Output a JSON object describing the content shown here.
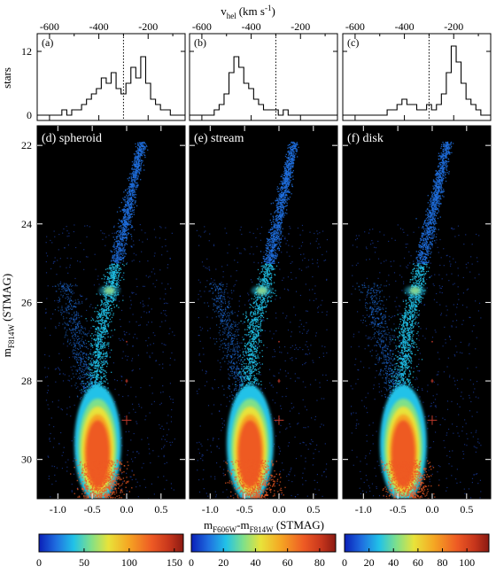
{
  "top_axis": {
    "label_main": "v",
    "label_sub": "hel",
    "label_unit_pre": "(km s",
    "label_unit_sup": "-1",
    "label_unit_post": ")",
    "ticks": [
      "-600",
      "-400",
      "-200"
    ],
    "tick_values": [
      -600,
      -400,
      -200
    ]
  },
  "hist_ylabel": "stars",
  "hist_yticks": [
    "0",
    "12"
  ],
  "cmd_ylabel_main": "m",
  "cmd_ylabel_sub": "F814W",
  "cmd_ylabel_post": " (STMAG)",
  "cmd_yticks": [
    "22",
    "24",
    "26",
    "28",
    "30"
  ],
  "cmd_xlabel_a": "m",
  "cmd_xlabel_sub1": "F606W",
  "cmd_xlabel_b": "-m",
  "cmd_xlabel_sub2": "F814W",
  "cmd_xlabel_post": " (STMAG)",
  "cmd_xticks": [
    "-1.0",
    "-0.5",
    "0.0",
    "0.5"
  ],
  "colors": {
    "dotted_line": "#000000",
    "error_cross": "#c0392b",
    "cmd_background": "#000000"
  },
  "chart_data": [
    {
      "type": "histogram",
      "panel": "(a)",
      "x_unit": "km s-1",
      "xlim": [
        -650,
        -50
      ],
      "ylim": [
        0,
        14
      ],
      "divider_x": -300,
      "bins_x": [
        -640,
        -620,
        -600,
        -580,
        -560,
        -540,
        -520,
        -500,
        -480,
        -460,
        -440,
        -420,
        -400,
        -380,
        -360,
        -340,
        -320,
        -300,
        -280,
        -260,
        -240,
        -220,
        -200,
        -180,
        -160,
        -140,
        -120,
        -100,
        -80,
        -60
      ],
      "counts": [
        0,
        0,
        0,
        0,
        0,
        1,
        0,
        1,
        1,
        2,
        3,
        4,
        5,
        7,
        6,
        8,
        5,
        4,
        6,
        9,
        7,
        11,
        6,
        3,
        2,
        1,
        1,
        0,
        0,
        0
      ]
    },
    {
      "type": "histogram",
      "panel": "(b)",
      "x_unit": "km s-1",
      "xlim": [
        -650,
        -50
      ],
      "ylim": [
        0,
        14
      ],
      "divider_x": -300,
      "bins_x": [
        -640,
        -620,
        -600,
        -580,
        -560,
        -540,
        -520,
        -500,
        -480,
        -460,
        -440,
        -420,
        -400,
        -380,
        -360,
        -340,
        -320,
        -300,
        -280,
        -260,
        -240,
        -220,
        -200,
        -180,
        -160,
        -140,
        -120,
        -100,
        -80,
        -60
      ],
      "counts": [
        0,
        0,
        0,
        0,
        0,
        1,
        2,
        4,
        8,
        11,
        9,
        6,
        5,
        3,
        2,
        1,
        1,
        1,
        0,
        1,
        0,
        0,
        0,
        0,
        0,
        0,
        0,
        0,
        0,
        0
      ]
    },
    {
      "type": "histogram",
      "panel": "(c)",
      "x_unit": "km s-1",
      "xlim": [
        -650,
        -50
      ],
      "ylim": [
        0,
        14
      ],
      "divider_x": -300,
      "bins_x": [
        -640,
        -620,
        -600,
        -580,
        -560,
        -540,
        -520,
        -500,
        -480,
        -460,
        -440,
        -420,
        -400,
        -380,
        -360,
        -340,
        -320,
        -300,
        -280,
        -260,
        -240,
        -220,
        -200,
        -180,
        -160,
        -140,
        -120,
        -100,
        -80,
        -60
      ],
      "counts": [
        0,
        0,
        0,
        0,
        0,
        0,
        0,
        0,
        0,
        1,
        1,
        2,
        3,
        2,
        2,
        1,
        1,
        2,
        1,
        2,
        4,
        8,
        13,
        10,
        6,
        3,
        2,
        1,
        0,
        0
      ]
    },
    {
      "type": "heatmap",
      "panel": "(d) spheroid",
      "xlim": [
        -1.3,
        0.85
      ],
      "ylim": [
        31,
        21.5
      ],
      "colorbar": {
        "ticks": [
          "0",
          "50",
          "100",
          "150"
        ],
        "tick_values": [
          0,
          50,
          100,
          150
        ],
        "max": 160
      },
      "error_bars": [
        {
          "color": 0.0,
          "mag": 27.0,
          "dx": 0.01,
          "dy": 0.02
        },
        {
          "color": 0.0,
          "mag": 28.0,
          "dx": 0.02,
          "dy": 0.05
        },
        {
          "color": 0.0,
          "mag": 29.0,
          "dx": 0.07,
          "dy": 0.12
        }
      ]
    },
    {
      "type": "heatmap",
      "panel": "(e) stream",
      "xlim": [
        -1.3,
        0.85
      ],
      "ylim": [
        31,
        21.5
      ],
      "colorbar": {
        "ticks": [
          "0",
          "20",
          "40",
          "60",
          "80"
        ],
        "tick_values": [
          0,
          20,
          40,
          60,
          80
        ],
        "max": 90
      },
      "error_bars": [
        {
          "color": 0.0,
          "mag": 27.0,
          "dx": 0.01,
          "dy": 0.02
        },
        {
          "color": 0.0,
          "mag": 28.0,
          "dx": 0.02,
          "dy": 0.05
        },
        {
          "color": 0.0,
          "mag": 29.0,
          "dx": 0.07,
          "dy": 0.12
        }
      ]
    },
    {
      "type": "heatmap",
      "panel": "(f) disk",
      "xlim": [
        -1.3,
        0.85
      ],
      "ylim": [
        31,
        21.5
      ],
      "colorbar": {
        "ticks": [
          "0",
          "20",
          "40",
          "60",
          "80",
          "100"
        ],
        "tick_values": [
          0,
          20,
          40,
          60,
          80,
          100
        ],
        "max": 118
      },
      "error_bars": [
        {
          "color": 0.0,
          "mag": 27.0,
          "dx": 0.01,
          "dy": 0.02
        },
        {
          "color": 0.0,
          "mag": 28.0,
          "dx": 0.02,
          "dy": 0.05
        },
        {
          "color": 0.0,
          "mag": 29.0,
          "dx": 0.07,
          "dy": 0.12
        }
      ]
    }
  ]
}
